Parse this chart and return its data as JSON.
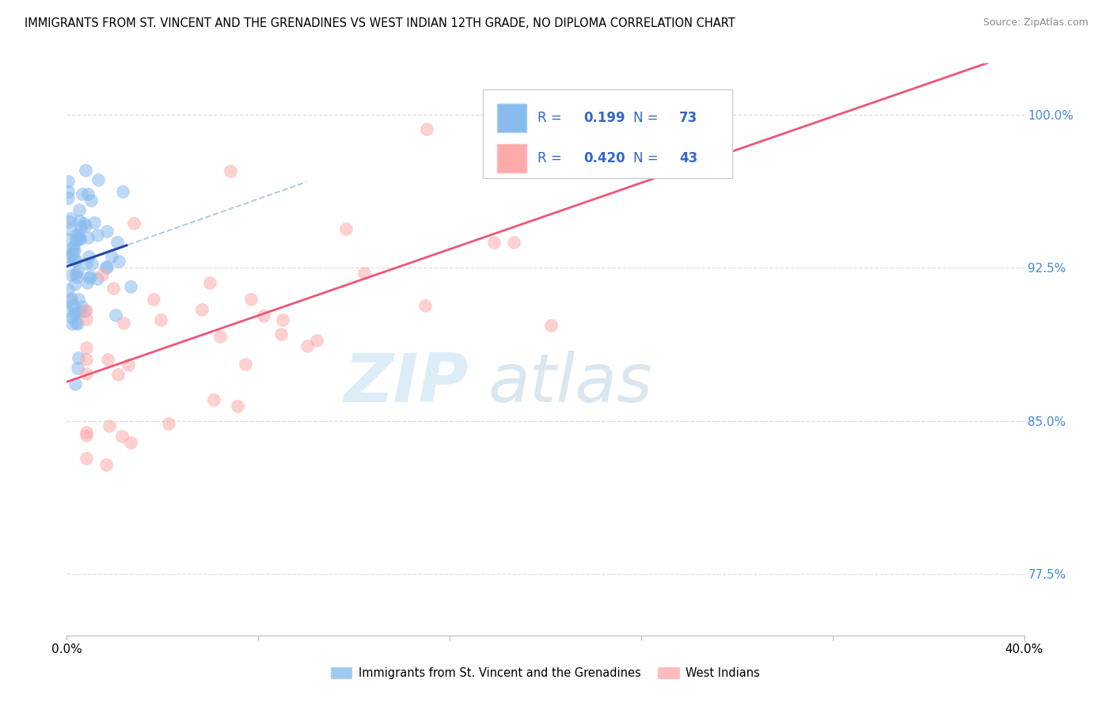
{
  "title": "IMMIGRANTS FROM ST. VINCENT AND THE GRENADINES VS WEST INDIAN 12TH GRADE, NO DIPLOMA CORRELATION CHART",
  "source": "Source: ZipAtlas.com",
  "legend_blue_r": "0.199",
  "legend_blue_n": "73",
  "legend_pink_r": "0.420",
  "legend_pink_n": "43",
  "legend_blue_label": "Immigrants from St. Vincent and the Grenadines",
  "legend_pink_label": "West Indians",
  "blue_scatter_color": "#88BBEE",
  "pink_scatter_color": "#FFAAAA",
  "blue_line_color": "#2244AA",
  "pink_line_color": "#EE5577",
  "dashed_line_color": "#AACCDD",
  "legend_text_color": "#3366CC",
  "ytick_color": "#4488DD",
  "xmin": 0.0,
  "xmax": 0.4,
  "ymin": 0.745,
  "ymax": 1.025,
  "ytick_values": [
    0.775,
    0.85,
    0.925,
    1.0
  ],
  "ytick_labels": [
    "77.5%",
    "85.0%",
    "92.5%",
    "100.0%"
  ],
  "xtick_values": [
    0.0,
    0.08,
    0.16,
    0.24,
    0.32,
    0.4
  ],
  "xtick_label_left": "0.0%",
  "xtick_label_right": "40.0%"
}
